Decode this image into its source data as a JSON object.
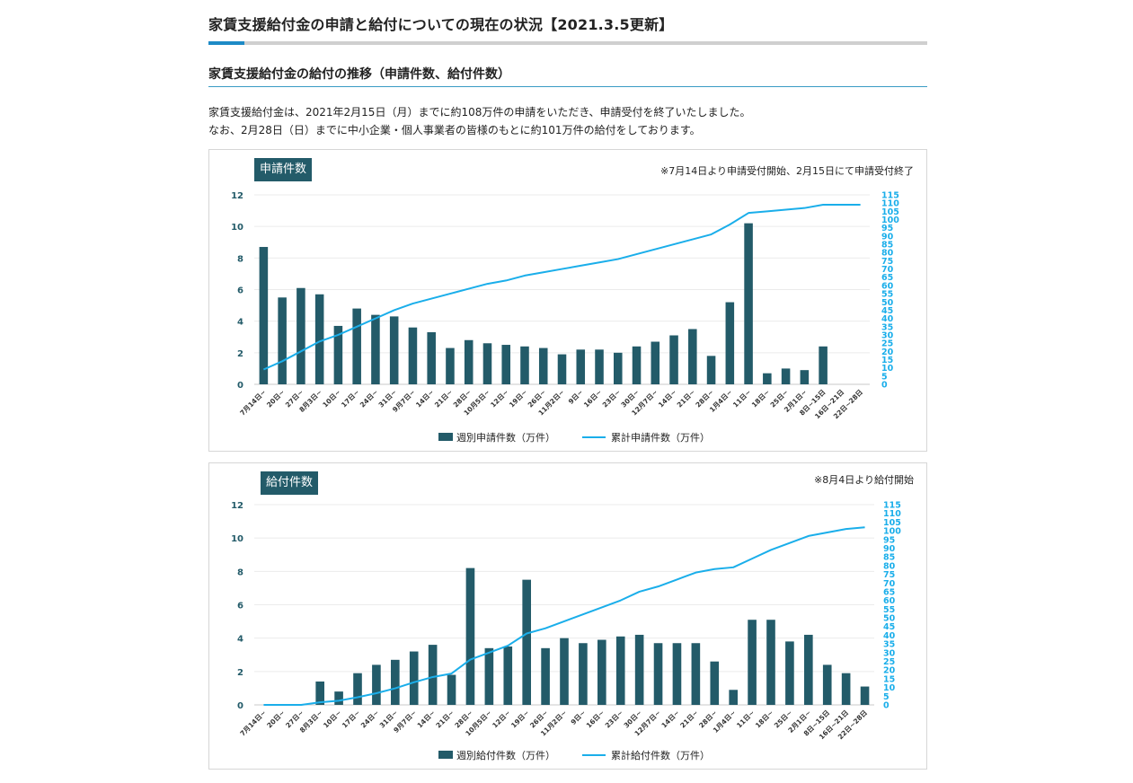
{
  "header": {
    "title": "家賃支援給付金の申請と給付についての現在の状況【2021.3.5更新】",
    "section_heading": "家賃支援給付金の給付の推移（申請件数、給付件数）"
  },
  "intro": {
    "line1": "家賃支援給付金は、2021年2月15日（月）までに約108万件の申請をいただき、申請受付を終了いたしました。",
    "line2": "なお、2月28日（日）までに中小企業・個人事業者の皆様のもとに約101万件の給付をしております。"
  },
  "colors": {
    "bar": "#235b69",
    "line": "#1aaeea",
    "right_axis": "#1aaeea",
    "left_axis": "#235b69",
    "title_accent": "#1d8ac6"
  },
  "chart_data": [
    {
      "type": "bar",
      "tag": "申請件数",
      "note": "※7月14日より申請受付開始、2月15日にて申請受付終了",
      "categories": [
        "7月14日~",
        "20日~",
        "27日~",
        "8月3日~",
        "10日~",
        "17日~",
        "24日~",
        "31日~",
        "9月7日~",
        "14日~",
        "21日~",
        "28日~",
        "10月5日~",
        "12日~",
        "19日~",
        "26日~",
        "11月2日~",
        "9日~",
        "16日~",
        "23日~",
        "30日~",
        "12月7日~",
        "14日~",
        "21日~",
        "28日~",
        "1月4日~",
        "11日~",
        "18日~",
        "25日~",
        "2月1日~",
        "8日~15日",
        "16日~21日",
        "22日~28日"
      ],
      "series": [
        {
          "name": "週別申請件数（万件）",
          "axis": "left",
          "values": [
            8.7,
            5.5,
            6.1,
            5.7,
            3.7,
            4.8,
            4.4,
            4.3,
            3.6,
            3.3,
            2.3,
            2.8,
            2.6,
            2.5,
            2.4,
            2.3,
            1.9,
            2.2,
            2.2,
            2.0,
            2.4,
            2.7,
            3.1,
            3.5,
            1.8,
            5.2,
            10.2,
            0.7,
            1.0,
            0.9,
            2.4,
            null,
            null
          ]
        },
        {
          "name": "累計申請件数（万件）",
          "axis": "right",
          "values": [
            9,
            14,
            20,
            26,
            30,
            35,
            40,
            45,
            49,
            52,
            55,
            58,
            61,
            63,
            66,
            68,
            70,
            72,
            74,
            76,
            79,
            82,
            85,
            88,
            91,
            97,
            104,
            105,
            106,
            107,
            109,
            109,
            109
          ]
        }
      ],
      "left_axis": {
        "min": 0,
        "max": 12,
        "ticks": [
          0,
          2,
          4,
          6,
          8,
          10,
          12
        ]
      },
      "right_axis": {
        "min": 0,
        "max": 115,
        "ticks": [
          0,
          5,
          10,
          15,
          20,
          25,
          30,
          35,
          40,
          45,
          50,
          55,
          60,
          65,
          70,
          75,
          80,
          85,
          90,
          95,
          100,
          105,
          110,
          115
        ]
      },
      "legend": {
        "placement": "bottom"
      }
    },
    {
      "type": "bar",
      "tag": "給付件数",
      "note": "※8月4日より給付開始",
      "categories": [
        "7月14日~",
        "20日~",
        "27日~",
        "8月3日~",
        "10日~",
        "17日~",
        "24日~",
        "31日~",
        "9月7日~",
        "14日~",
        "21日~",
        "28日~",
        "10月5日~",
        "12日~",
        "19日~",
        "26日~",
        "11月2日~",
        "9日~",
        "16日~",
        "23日~",
        "30日~",
        "12月7日~",
        "14日~",
        "21日~",
        "28日~",
        "1月4日~",
        "11日~",
        "18日~",
        "25日~",
        "2月1日~",
        "8日~15日",
        "16日~21日",
        "22日~28日"
      ],
      "series": [
        {
          "name": "週別給付件数（万件）",
          "axis": "left",
          "values": [
            null,
            null,
            null,
            1.4,
            0.8,
            1.9,
            2.4,
            2.7,
            3.2,
            3.6,
            1.8,
            8.2,
            3.4,
            3.5,
            7.5,
            3.4,
            4.0,
            3.7,
            3.9,
            4.1,
            4.2,
            3.7,
            3.7,
            3.7,
            2.6,
            0.9,
            5.1,
            5.1,
            3.8,
            4.2,
            2.4,
            1.9,
            1.1
          ]
        },
        {
          "name": "累計給付件数（万件）",
          "axis": "right",
          "values": [
            0,
            0,
            0,
            1.5,
            2.4,
            4.4,
            6.7,
            9.5,
            13,
            16,
            18,
            26,
            30,
            34,
            41,
            44,
            48,
            52,
            56,
            60,
            65,
            68,
            72,
            76,
            78,
            79,
            84,
            89,
            93,
            97,
            99,
            101,
            102
          ]
        }
      ],
      "left_axis": {
        "min": 0,
        "max": 12,
        "ticks": [
          0,
          2,
          4,
          6,
          8,
          10,
          12
        ]
      },
      "right_axis": {
        "min": 0,
        "max": 115,
        "ticks": [
          0,
          5,
          10,
          15,
          20,
          25,
          30,
          35,
          40,
          45,
          50,
          55,
          60,
          65,
          70,
          75,
          80,
          85,
          90,
          95,
          100,
          105,
          110,
          115
        ]
      },
      "legend": {
        "placement": "bottom"
      }
    }
  ]
}
